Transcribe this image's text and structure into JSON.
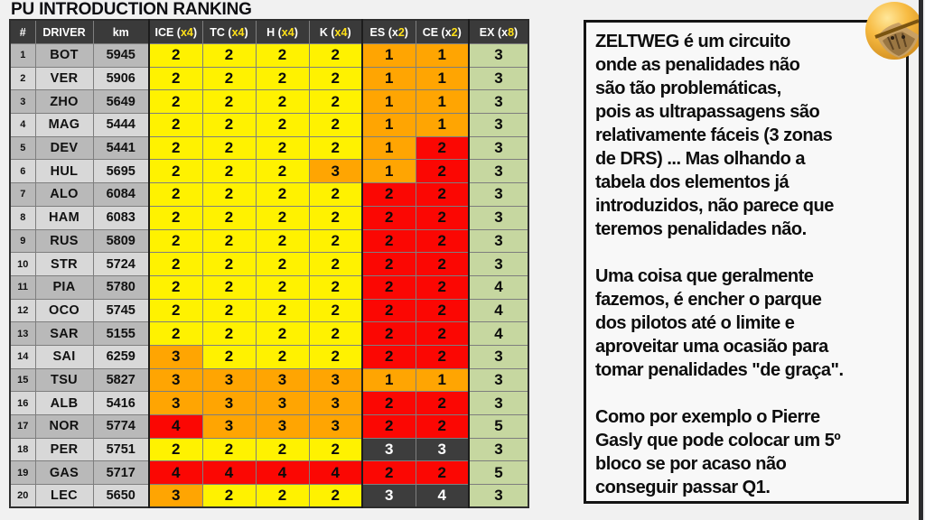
{
  "title": "PU INTRODUCTION RANKING",
  "colors": {
    "header_bg": "#3a3a3a",
    "header_text": "#ffffff",
    "header_multiplier": "#ffe018",
    "row_stripe_dark": "#b9b9b9",
    "row_stripe_light": "#d8d8d8",
    "cell_yellow": "#fff200",
    "cell_orange": "#ffa502",
    "cell_red": "#fb0703",
    "cell_dark": "#3d3d3d",
    "cell_green_ex": "#c6d7a0",
    "page_bg": "#f1f1f1"
  },
  "table": {
    "header": {
      "num": "#",
      "driver": "DRIVER",
      "km": "km",
      "components": [
        {
          "pre": "ICE (",
          "hl": "x4",
          "post": ")"
        },
        {
          "pre": "TC (",
          "hl": "x4",
          "post": ")"
        },
        {
          "pre": "H (",
          "hl": "x4",
          "post": ")"
        },
        {
          "pre": "K (",
          "hl": "x4",
          "post": ")"
        },
        {
          "pre": "ES (x",
          "hl": "2",
          "post": ")"
        },
        {
          "pre": "CE (x",
          "hl": "2",
          "post": ")"
        }
      ],
      "ex": {
        "pre": "EX (x",
        "hl": "8",
        "post": ")"
      }
    }
  },
  "chart_data": {
    "type": "table",
    "title": "PU INTRODUCTION RANKING",
    "columns": [
      "#",
      "DRIVER",
      "km",
      "ICE (x4)",
      "TC (x4)",
      "H (x4)",
      "K (x4)",
      "ES (x2)",
      "CE (x2)",
      "EX (x8)"
    ],
    "cell_color_codes": {
      "y": "#fff200",
      "o": "#ffa502",
      "r": "#fb0703",
      "d": "#3d3d3d"
    },
    "rows": [
      {
        "pos": "1",
        "driver": "BOT",
        "km": "5945",
        "cells": [
          [
            "2",
            "y"
          ],
          [
            "2",
            "y"
          ],
          [
            "2",
            "y"
          ],
          [
            "2",
            "y"
          ],
          [
            "1",
            "o"
          ],
          [
            "1",
            "o"
          ]
        ],
        "ex": "3"
      },
      {
        "pos": "2",
        "driver": "VER",
        "km": "5906",
        "cells": [
          [
            "2",
            "y"
          ],
          [
            "2",
            "y"
          ],
          [
            "2",
            "y"
          ],
          [
            "2",
            "y"
          ],
          [
            "1",
            "o"
          ],
          [
            "1",
            "o"
          ]
        ],
        "ex": "3"
      },
      {
        "pos": "3",
        "driver": "ZHO",
        "km": "5649",
        "cells": [
          [
            "2",
            "y"
          ],
          [
            "2",
            "y"
          ],
          [
            "2",
            "y"
          ],
          [
            "2",
            "y"
          ],
          [
            "1",
            "o"
          ],
          [
            "1",
            "o"
          ]
        ],
        "ex": "3"
      },
      {
        "pos": "4",
        "driver": "MAG",
        "km": "5444",
        "cells": [
          [
            "2",
            "y"
          ],
          [
            "2",
            "y"
          ],
          [
            "2",
            "y"
          ],
          [
            "2",
            "y"
          ],
          [
            "1",
            "o"
          ],
          [
            "1",
            "o"
          ]
        ],
        "ex": "3"
      },
      {
        "pos": "5",
        "driver": "DEV",
        "km": "5441",
        "cells": [
          [
            "2",
            "y"
          ],
          [
            "2",
            "y"
          ],
          [
            "2",
            "y"
          ],
          [
            "2",
            "y"
          ],
          [
            "1",
            "o"
          ],
          [
            "2",
            "r"
          ]
        ],
        "ex": "3"
      },
      {
        "pos": "6",
        "driver": "HUL",
        "km": "5695",
        "cells": [
          [
            "2",
            "y"
          ],
          [
            "2",
            "y"
          ],
          [
            "2",
            "y"
          ],
          [
            "3",
            "o"
          ],
          [
            "1",
            "o"
          ],
          [
            "2",
            "r"
          ]
        ],
        "ex": "3"
      },
      {
        "pos": "7",
        "driver": "ALO",
        "km": "6084",
        "cells": [
          [
            "2",
            "y"
          ],
          [
            "2",
            "y"
          ],
          [
            "2",
            "y"
          ],
          [
            "2",
            "y"
          ],
          [
            "2",
            "r"
          ],
          [
            "2",
            "r"
          ]
        ],
        "ex": "3"
      },
      {
        "pos": "8",
        "driver": "HAM",
        "km": "6083",
        "cells": [
          [
            "2",
            "y"
          ],
          [
            "2",
            "y"
          ],
          [
            "2",
            "y"
          ],
          [
            "2",
            "y"
          ],
          [
            "2",
            "r"
          ],
          [
            "2",
            "r"
          ]
        ],
        "ex": "3"
      },
      {
        "pos": "9",
        "driver": "RUS",
        "km": "5809",
        "cells": [
          [
            "2",
            "y"
          ],
          [
            "2",
            "y"
          ],
          [
            "2",
            "y"
          ],
          [
            "2",
            "y"
          ],
          [
            "2",
            "r"
          ],
          [
            "2",
            "r"
          ]
        ],
        "ex": "3"
      },
      {
        "pos": "10",
        "driver": "STR",
        "km": "5724",
        "cells": [
          [
            "2",
            "y"
          ],
          [
            "2",
            "y"
          ],
          [
            "2",
            "y"
          ],
          [
            "2",
            "y"
          ],
          [
            "2",
            "r"
          ],
          [
            "2",
            "r"
          ]
        ],
        "ex": "3"
      },
      {
        "pos": "11",
        "driver": "PIA",
        "km": "5780",
        "cells": [
          [
            "2",
            "y"
          ],
          [
            "2",
            "y"
          ],
          [
            "2",
            "y"
          ],
          [
            "2",
            "y"
          ],
          [
            "2",
            "r"
          ],
          [
            "2",
            "r"
          ]
        ],
        "ex": "4"
      },
      {
        "pos": "12",
        "driver": "OCO",
        "km": "5745",
        "cells": [
          [
            "2",
            "y"
          ],
          [
            "2",
            "y"
          ],
          [
            "2",
            "y"
          ],
          [
            "2",
            "y"
          ],
          [
            "2",
            "r"
          ],
          [
            "2",
            "r"
          ]
        ],
        "ex": "4"
      },
      {
        "pos": "13",
        "driver": "SAR",
        "km": "5155",
        "cells": [
          [
            "2",
            "y"
          ],
          [
            "2",
            "y"
          ],
          [
            "2",
            "y"
          ],
          [
            "2",
            "y"
          ],
          [
            "2",
            "r"
          ],
          [
            "2",
            "r"
          ]
        ],
        "ex": "4"
      },
      {
        "pos": "14",
        "driver": "SAI",
        "km": "6259",
        "cells": [
          [
            "3",
            "o"
          ],
          [
            "2",
            "y"
          ],
          [
            "2",
            "y"
          ],
          [
            "2",
            "y"
          ],
          [
            "2",
            "r"
          ],
          [
            "2",
            "r"
          ]
        ],
        "ex": "3"
      },
      {
        "pos": "15",
        "driver": "TSU",
        "km": "5827",
        "cells": [
          [
            "3",
            "o"
          ],
          [
            "3",
            "o"
          ],
          [
            "3",
            "o"
          ],
          [
            "3",
            "o"
          ],
          [
            "1",
            "o"
          ],
          [
            "1",
            "o"
          ]
        ],
        "ex": "3"
      },
      {
        "pos": "16",
        "driver": "ALB",
        "km": "5416",
        "cells": [
          [
            "3",
            "o"
          ],
          [
            "3",
            "o"
          ],
          [
            "3",
            "o"
          ],
          [
            "3",
            "o"
          ],
          [
            "2",
            "r"
          ],
          [
            "2",
            "r"
          ]
        ],
        "ex": "3"
      },
      {
        "pos": "17",
        "driver": "NOR",
        "km": "5774",
        "cells": [
          [
            "4",
            "r"
          ],
          [
            "3",
            "o"
          ],
          [
            "3",
            "o"
          ],
          [
            "3",
            "o"
          ],
          [
            "2",
            "r"
          ],
          [
            "2",
            "r"
          ]
        ],
        "ex": "5"
      },
      {
        "pos": "18",
        "driver": "PER",
        "km": "5751",
        "cells": [
          [
            "2",
            "y"
          ],
          [
            "2",
            "y"
          ],
          [
            "2",
            "y"
          ],
          [
            "2",
            "y"
          ],
          [
            "3",
            "d"
          ],
          [
            "3",
            "d"
          ]
        ],
        "ex": "3"
      },
      {
        "pos": "19",
        "driver": "GAS",
        "km": "5717",
        "cells": [
          [
            "4",
            "r"
          ],
          [
            "4",
            "r"
          ],
          [
            "4",
            "r"
          ],
          [
            "4",
            "r"
          ],
          [
            "2",
            "r"
          ],
          [
            "2",
            "r"
          ]
        ],
        "ex": "5"
      },
      {
        "pos": "20",
        "driver": "LEC",
        "km": "5650",
        "cells": [
          [
            "3",
            "o"
          ],
          [
            "2",
            "y"
          ],
          [
            "2",
            "y"
          ],
          [
            "2",
            "y"
          ],
          [
            "3",
            "d"
          ],
          [
            "4",
            "d"
          ]
        ],
        "ex": "3"
      }
    ]
  },
  "panel": {
    "p1": "ZELTWEG é um circuito\nonde as penalidades não\nsão tão problemáticas,\npois as ultrapassagens são\nrelativamente fáceis (3 zonas\nde DRS) ... Mas olhando a\ntabela dos elementos já\nintroduzidos, não parece que\nteremos penalidades não.",
    "p2": "Uma coisa que geralmente\nfazemos, é encher o parque\ndos pilotos até o limite e\naproveitar uma ocasião para\ntomar penalidades \"de graça\".",
    "p3": "Como por exemplo o Pierre\nGasly que pode colocar um 5º\nbloco se por acaso não\nconseguir passar Q1."
  }
}
